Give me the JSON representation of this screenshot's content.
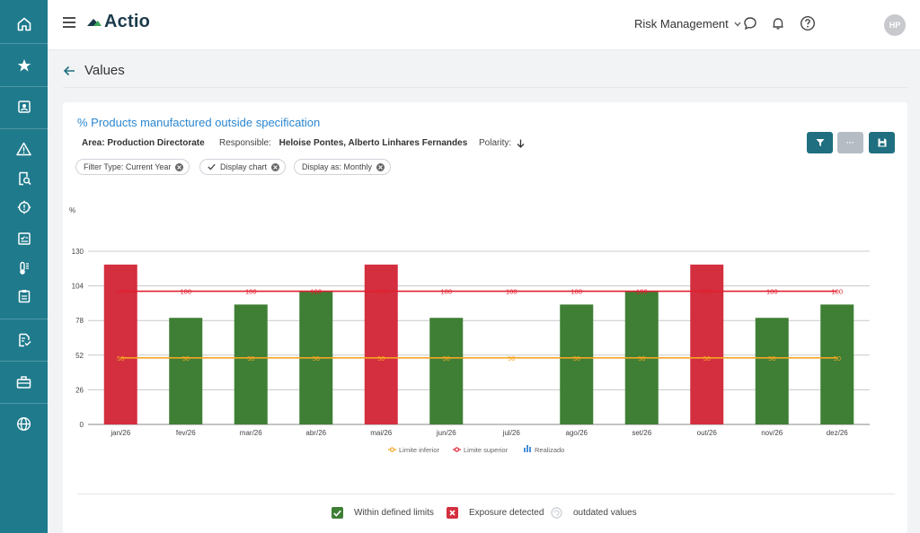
{
  "app": {
    "logo_text": "Actio"
  },
  "header": {
    "module": "Risk Management",
    "avatar_initials": "HP"
  },
  "page": {
    "title": "Values"
  },
  "indicator": {
    "title": "% Products manufactured outside specification",
    "area_label": "Area: Production Directorate",
    "responsible_label": "Responsible:",
    "responsible_value": "Heloise Pontes, Alberto Linhares Fernandes",
    "polarity_label": "Polarity:"
  },
  "filters": [
    {
      "label": "Filter Type: Current Year"
    },
    {
      "label": "Display chart"
    },
    {
      "label": "Display as: Monthly"
    }
  ],
  "toolbar": {
    "more_label": "···"
  },
  "chart_data": {
    "type": "bar",
    "unit": "%",
    "categories": [
      "jan/26",
      "fev/26",
      "mar/26",
      "abr/26",
      "mai/26",
      "jun/26",
      "jul/26",
      "ago/26",
      "set/26",
      "out/26",
      "nov/26",
      "dez/26"
    ],
    "yticks": [
      0,
      26,
      52,
      78,
      104,
      130
    ],
    "ylim": [
      0,
      130
    ],
    "series": [
      {
        "name": "Realizado",
        "values": [
          120,
          80,
          90,
          100,
          120,
          80,
          null,
          90,
          100,
          120,
          80,
          90
        ],
        "colors": [
          "#d32f3f",
          "#3f7f35",
          "#3f7f35",
          "#3f7f35",
          "#d32f3f",
          "#3f7f35",
          null,
          "#3f7f35",
          "#3f7f35",
          "#d32f3f",
          "#3f7f35",
          "#3f7f35"
        ]
      },
      {
        "name": "Limite inferior",
        "values": [
          50,
          50,
          50,
          50,
          50,
          50,
          50,
          50,
          50,
          50,
          50,
          50
        ],
        "color": "#f5a623"
      },
      {
        "name": "Limite superior",
        "values": [
          100,
          100,
          100,
          100,
          100,
          100,
          100,
          100,
          100,
          100,
          100,
          100
        ],
        "color": "#e0202f"
      }
    ],
    "legend": [
      {
        "label": "Limite inferior",
        "color": "#f5a623"
      },
      {
        "label": "Limite superior",
        "color": "#e0202f"
      },
      {
        "label": "Realizado",
        "color": "#4a90d9"
      }
    ],
    "grid": true,
    "legend_position": "bottom"
  },
  "status_legend": {
    "within": "Within defined limits",
    "exposure": "Exposure detected",
    "outdated": "outdated values"
  },
  "colors": {
    "sidebar": "#1f7a8c",
    "accent": "#1f6f80",
    "ok": "#3f7f35",
    "bad": "#d32f3f"
  }
}
